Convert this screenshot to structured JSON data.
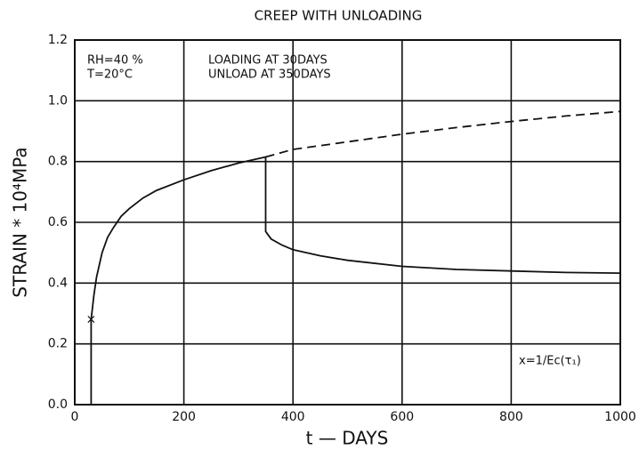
{
  "chart_data": {
    "type": "line",
    "title": "CREEP WITH UNLOADING",
    "xlabel": "t  —  DAYS",
    "ylabel": "STRAIN * 10⁴MPa",
    "annotations": [
      "RH=40 %",
      "T=20°C",
      "LOADING AT 30DAYS",
      "UNLOAD AT 350DAYS",
      "x=1/Ec(τ₁)"
    ],
    "xlim": [
      0,
      1000
    ],
    "xticks": [
      0,
      200,
      400,
      600,
      800,
      1000
    ],
    "ylim": [
      0,
      1.2
    ],
    "yticks": [
      {
        "value": 0,
        "label": "0.0"
      },
      0.2,
      0.4,
      0.6,
      0.8,
      {
        "value": 1,
        "label": "1.0"
      },
      1.2
    ],
    "grid": true,
    "series": [
      {
        "color": "#111111",
        "dash": false,
        "x": [
          30,
          30,
          35,
          40,
          50,
          60,
          70,
          85,
          100,
          125,
          150,
          200,
          250,
          300,
          350,
          350,
          360,
          380,
          400,
          450,
          500,
          600,
          700,
          800,
          900,
          1000
        ],
        "values": [
          0,
          0.28,
          0.36,
          0.42,
          0.5,
          0.55,
          0.58,
          0.62,
          0.645,
          0.68,
          0.705,
          0.74,
          0.77,
          0.795,
          0.815,
          0.57,
          0.545,
          0.525,
          0.51,
          0.49,
          0.475,
          0.455,
          0.445,
          0.44,
          0.435,
          0.433
        ]
      },
      {
        "color": "#111111",
        "dash": true,
        "x": [
          350,
          400,
          500,
          600,
          700,
          800,
          900,
          1000
        ],
        "values": [
          0.815,
          0.84,
          0.865,
          0.89,
          0.912,
          0.932,
          0.95,
          0.965
        ]
      }
    ],
    "markers": {
      "x": [
        30
      ],
      "values": [
        0.28
      ]
    }
  }
}
